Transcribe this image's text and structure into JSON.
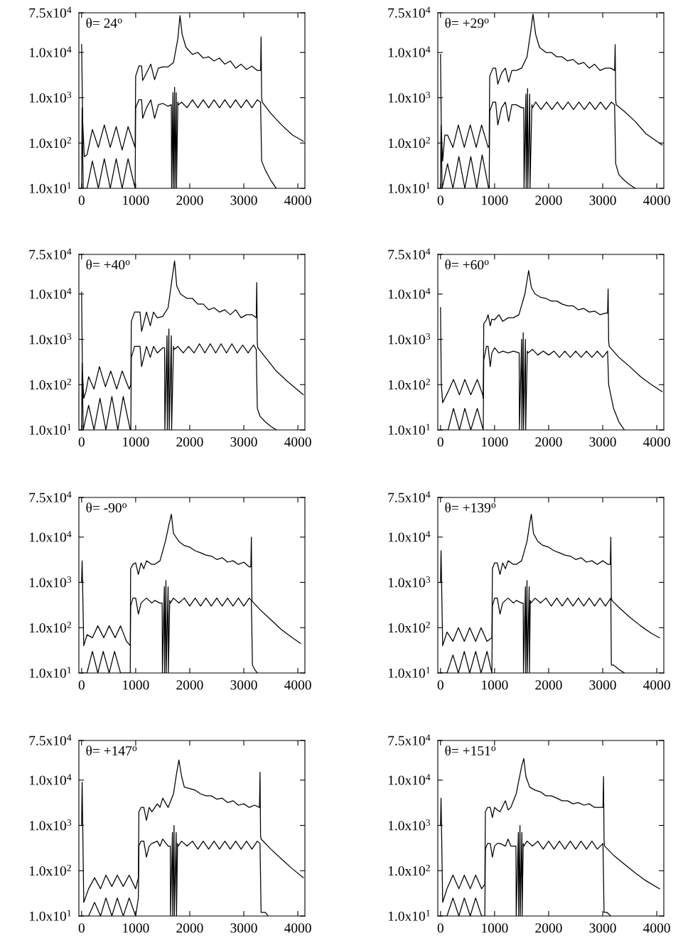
{
  "chart_data": [
    {
      "type": "line",
      "annotations": [
        "θ= 24$^{o}$"
      ],
      "xlim": [
        -50,
        4130
      ],
      "ylim": [
        10,
        75000
      ],
      "xticks": [
        0,
        1000,
        2000,
        3000,
        4000
      ],
      "yticks": [
        {
          "value": 10,
          "label": "1.0x10$^{1}$"
        },
        {
          "value": 100,
          "label": "1.0x10$^{2}$"
        },
        {
          "value": 1000,
          "label": "1.0x10$^{3}$"
        },
        {
          "value": 10000,
          "label": "1.0x10$^{4}$"
        },
        {
          "value": 75000,
          "label": "7.5x10$^{4}$"
        }
      ],
      "log": "y",
      "series": [
        {
          "color": "#000000",
          "x": [
            0,
            20,
            50,
            100,
            200,
            310,
            420,
            530,
            640,
            750,
            860,
            990,
            1000,
            1060,
            1110,
            1130,
            1200,
            1280,
            1350,
            1420,
            1500,
            1600,
            1700,
            1780,
            1820,
            1860,
            1930,
            2050,
            2150,
            2250,
            2350,
            2450,
            2550,
            2650,
            2750,
            2850,
            2950,
            3050,
            3150,
            3250,
            3310,
            3320,
            3330,
            3340,
            3500,
            3700,
            3900,
            4100
          ],
          "values": [
            15000,
            300,
            50,
            55,
            200,
            80,
            250,
            80,
            230,
            70,
            230,
            80,
            3000,
            5000,
            5000,
            2400,
            3500,
            5500,
            2500,
            4500,
            4800,
            4800,
            6000,
            20000,
            65000,
            25000,
            13000,
            9000,
            10000,
            7500,
            8000,
            6500,
            7500,
            5500,
            6500,
            4500,
            5500,
            4200,
            5000,
            4000,
            4000,
            22000,
            1000,
            800,
            450,
            250,
            150,
            110
          ]
        },
        {
          "color": "#000000",
          "x": [
            0,
            10,
            30,
            100,
            200,
            310,
            420,
            530,
            640,
            750,
            860,
            990,
            1000,
            1060,
            1110,
            1130,
            1200,
            1280,
            1350,
            1420,
            1500,
            1600,
            1660,
            1665,
            1690,
            1695,
            1720,
            1725,
            1750,
            1755,
            1780,
            1790,
            1850,
            1950,
            2050,
            2150,
            2250,
            2350,
            2450,
            2550,
            2650,
            2750,
            2850,
            2950,
            3050,
            3150,
            3250,
            3310,
            3330,
            3400,
            3500,
            3600
          ],
          "values": [
            10,
            600,
            10,
            10,
            40,
            10,
            45,
            10,
            45,
            10,
            45,
            10,
            600,
            900,
            900,
            350,
            600,
            900,
            350,
            700,
            750,
            650,
            700,
            10,
            1300,
            10,
            1700,
            10,
            1300,
            10,
            800,
            700,
            800,
            600,
            900,
            600,
            900,
            600,
            900,
            600,
            900,
            600,
            900,
            600,
            900,
            600,
            900,
            800,
            40,
            25,
            15,
            10
          ]
        }
      ]
    },
    {
      "type": "line",
      "annotations": [
        "θ= +29$^{o}$"
      ],
      "xlim": [
        -50,
        4130
      ],
      "ylim": [
        10,
        75000
      ],
      "xticks": [
        0,
        1000,
        2000,
        3000,
        4000
      ],
      "yticks": [
        {
          "value": 10,
          "label": "1.0x10$^{1}$"
        },
        {
          "value": 100,
          "label": "1.0x10$^{2}$"
        },
        {
          "value": 1000,
          "label": "1.0x10$^{3}$"
        },
        {
          "value": 10000,
          "label": "1.0x10$^{4}$"
        },
        {
          "value": 75000,
          "label": "7.5x10$^{4}$"
        }
      ],
      "log": "y",
      "series": [
        {
          "color": "#000000",
          "x": [
            0,
            15,
            40,
            80,
            130,
            230,
            330,
            440,
            550,
            660,
            760,
            880,
            900,
            910,
            970,
            1020,
            1060,
            1130,
            1200,
            1260,
            1320,
            1400,
            1500,
            1600,
            1670,
            1710,
            1760,
            1830,
            1950,
            2050,
            2150,
            2250,
            2350,
            2450,
            2550,
            2650,
            2750,
            2850,
            2950,
            3050,
            3150,
            3220,
            3230,
            3240,
            3250,
            3400,
            3600,
            3800,
            4100
          ],
          "values": [
            9000,
            200,
            40,
            150,
            150,
            80,
            250,
            80,
            250,
            80,
            250,
            80,
            90,
            3000,
            4500,
            4500,
            2000,
            3500,
            4500,
            2200,
            4000,
            4000,
            4500,
            8000,
            30000,
            70000,
            25000,
            13000,
            10000,
            10000,
            8000,
            8000,
            6500,
            7000,
            5500,
            6000,
            4500,
            5500,
            4000,
            4500,
            4500,
            4000,
            15000,
            900,
            700,
            500,
            300,
            160,
            90
          ]
        },
        {
          "color": "#000000",
          "x": [
            0,
            10,
            30,
            130,
            230,
            340,
            450,
            560,
            670,
            770,
            890,
            900,
            910,
            970,
            1020,
            1060,
            1130,
            1200,
            1260,
            1320,
            1400,
            1500,
            1540,
            1545,
            1580,
            1585,
            1610,
            1615,
            1650,
            1655,
            1690,
            1700,
            1760,
            1860,
            1960,
            2060,
            2160,
            2260,
            2360,
            2460,
            2560,
            2660,
            2760,
            2860,
            2960,
            3060,
            3160,
            3220,
            3240,
            3300,
            3400,
            3500,
            3600
          ],
          "values": [
            10,
            250,
            10,
            35,
            10,
            50,
            10,
            50,
            10,
            55,
            10,
            10,
            500,
            800,
            800,
            250,
            600,
            800,
            300,
            700,
            700,
            600,
            600,
            10,
            1200,
            10,
            1600,
            10,
            1200,
            10,
            700,
            600,
            800,
            550,
            800,
            550,
            800,
            550,
            800,
            550,
            800,
            550,
            800,
            550,
            800,
            550,
            800,
            700,
            35,
            20,
            15,
            12,
            10
          ]
        }
      ]
    },
    {
      "type": "line",
      "annotations": [
        "θ= +40$^{o}$"
      ],
      "xlim": [
        -50,
        4130
      ],
      "ylim": [
        10,
        75000
      ],
      "xticks": [
        0,
        1000,
        2000,
        3000,
        4000
      ],
      "yticks": [
        {
          "value": 10,
          "label": "1.0x10$^{1}$"
        },
        {
          "value": 100,
          "label": "1.0x10$^{2}$"
        },
        {
          "value": 1000,
          "label": "1.0x10$^{3}$"
        },
        {
          "value": 10000,
          "label": "1.0x10$^{4}$"
        },
        {
          "value": 75000,
          "label": "7.5x10$^{4}$"
        }
      ],
      "log": "y",
      "series": [
        {
          "color": "#000000",
          "x": [
            0,
            15,
            40,
            80,
            130,
            230,
            330,
            440,
            540,
            650,
            750,
            880,
            910,
            920,
            980,
            1030,
            1080,
            1110,
            1200,
            1270,
            1330,
            1400,
            1500,
            1600,
            1680,
            1720,
            1760,
            1830,
            1950,
            2050,
            2150,
            2250,
            2350,
            2450,
            2550,
            2650,
            2750,
            2850,
            2950,
            3050,
            3150,
            3230,
            3240,
            3250,
            3260,
            3400,
            3600,
            3800,
            4100
          ],
          "values": [
            11000,
            200,
            50,
            70,
            150,
            80,
            250,
            90,
            200,
            80,
            200,
            80,
            100,
            2500,
            4000,
            4000,
            4000,
            1500,
            4000,
            2000,
            4000,
            3000,
            3200,
            5000,
            25000,
            54000,
            15000,
            10000,
            8000,
            8000,
            6000,
            6000,
            4500,
            5000,
            4000,
            4500,
            3500,
            4500,
            3000,
            3500,
            3500,
            3000,
            18000,
            800,
            650,
            400,
            200,
            120,
            60
          ]
        },
        {
          "color": "#000000",
          "x": [
            0,
            10,
            30,
            130,
            230,
            340,
            450,
            560,
            670,
            770,
            900,
            910,
            920,
            980,
            1030,
            1080,
            1110,
            1200,
            1270,
            1330,
            1400,
            1500,
            1535,
            1540,
            1580,
            1585,
            1615,
            1620,
            1660,
            1665,
            1700,
            1710,
            1780,
            1880,
            1980,
            2080,
            2180,
            2280,
            2380,
            2480,
            2580,
            2680,
            2780,
            2880,
            2980,
            3080,
            3180,
            3230,
            3250,
            3300,
            3400,
            3500,
            3600
          ],
          "values": [
            10,
            300,
            10,
            35,
            10,
            50,
            10,
            55,
            10,
            55,
            10,
            10,
            400,
            700,
            700,
            700,
            250,
            700,
            400,
            700,
            500,
            650,
            650,
            10,
            1200,
            10,
            1700,
            10,
            1200,
            10,
            700,
            600,
            700,
            500,
            700,
            500,
            800,
            500,
            800,
            500,
            800,
            500,
            800,
            500,
            750,
            500,
            750,
            600,
            30,
            20,
            15,
            12,
            10
          ]
        }
      ]
    },
    {
      "type": "line",
      "annotations": [
        "θ= +60$^{o}$"
      ],
      "xlim": [
        -50,
        4130
      ],
      "ylim": [
        10,
        75000
      ],
      "xticks": [
        0,
        1000,
        2000,
        3000,
        4000
      ],
      "yticks": [
        {
          "value": 10,
          "label": "1.0x10$^{1}$"
        },
        {
          "value": 100,
          "label": "1.0x10$^{2}$"
        },
        {
          "value": 1000,
          "label": "1.0x10$^{3}$"
        },
        {
          "value": 10000,
          "label": "1.0x10$^{4}$"
        },
        {
          "value": 75000,
          "label": "7.5x10$^{4}$"
        }
      ],
      "log": "y",
      "series": [
        {
          "color": "#000000",
          "x": [
            0,
            15,
            40,
            80,
            140,
            240,
            350,
            450,
            560,
            680,
            780,
            790,
            800,
            850,
            880,
            920,
            950,
            1000,
            1080,
            1150,
            1250,
            1350,
            1450,
            1560,
            1630,
            1680,
            1750,
            1850,
            1950,
            2050,
            2150,
            2250,
            2350,
            2450,
            2550,
            2650,
            2750,
            2850,
            2950,
            3050,
            3090,
            3100,
            3110,
            3120,
            3300,
            3500,
            3700,
            3900,
            4100
          ],
          "values": [
            5000,
            100,
            40,
            50,
            70,
            130,
            60,
            130,
            60,
            130,
            60,
            50,
            2200,
            2700,
            3500,
            2000,
            2800,
            2700,
            3500,
            2500,
            3000,
            3000,
            3500,
            10000,
            33000,
            14000,
            10000,
            8500,
            8000,
            7000,
            7000,
            6000,
            5500,
            5500,
            4500,
            4800,
            4000,
            4200,
            3500,
            3800,
            3800,
            13000,
            900,
            700,
            400,
            250,
            150,
            100,
            70
          ]
        },
        {
          "color": "#000000",
          "x": [
            0,
            20,
            140,
            240,
            350,
            450,
            560,
            680,
            790,
            800,
            850,
            880,
            920,
            950,
            1000,
            1080,
            1150,
            1250,
            1350,
            1455,
            1460,
            1500,
            1505,
            1530,
            1535,
            1570,
            1575,
            1605,
            1615,
            1700,
            1800,
            1900,
            2000,
            2100,
            2200,
            2300,
            2400,
            2500,
            2600,
            2700,
            2800,
            2900,
            3000,
            3090,
            3110,
            3200,
            3300,
            3400
          ],
          "values": [
            10,
            10,
            10,
            30,
            10,
            30,
            10,
            30,
            10,
            350,
            700,
            700,
            250,
            500,
            650,
            500,
            550,
            500,
            550,
            500,
            10,
            1000,
            10,
            1400,
            10,
            1000,
            10,
            550,
            500,
            600,
            450,
            550,
            450,
            550,
            400,
            550,
            400,
            550,
            400,
            550,
            400,
            550,
            400,
            550,
            100,
            30,
            15,
            10
          ]
        }
      ]
    },
    {
      "type": "line",
      "annotations": [
        "θ= -90$^{o}$"
      ],
      "xlim": [
        -50,
        4130
      ],
      "ylim": [
        10,
        75000
      ],
      "xticks": [
        0,
        1000,
        2000,
        3000,
        4000
      ],
      "yticks": [
        {
          "value": 10,
          "label": "1.0x10$^{1}$"
        },
        {
          "value": 100,
          "label": "1.0x10$^{2}$"
        },
        {
          "value": 1000,
          "label": "1.0x10$^{3}$"
        },
        {
          "value": 10000,
          "label": "1.0x10$^{4}$"
        },
        {
          "value": 75000,
          "label": "7.5x10$^{4}$"
        }
      ],
      "log": "y",
      "series": [
        {
          "color": "#000000",
          "x": [
            0,
            10,
            40,
            100,
            200,
            300,
            410,
            510,
            620,
            720,
            830,
            900,
            907,
            950,
            1000,
            1050,
            1100,
            1150,
            1200,
            1300,
            1350,
            1450,
            1550,
            1620,
            1660,
            1700,
            1800,
            1900,
            2000,
            2100,
            2200,
            2300,
            2400,
            2500,
            2600,
            2700,
            2800,
            2900,
            3000,
            3100,
            3130,
            3140,
            3150,
            3160,
            3300,
            3500,
            3700,
            3900,
            4050
          ],
          "values": [
            1000,
            3000,
            40,
            70,
            60,
            110,
            60,
            110,
            60,
            110,
            50,
            40,
            2000,
            2500,
            2700,
            1500,
            2700,
            2000,
            3000,
            2500,
            2500,
            3000,
            8000,
            20000,
            32000,
            12000,
            8000,
            6500,
            6000,
            5000,
            4500,
            4000,
            3800,
            3200,
            3500,
            2800,
            3000,
            2500,
            2800,
            2200,
            2200,
            10000,
            400,
            380,
            250,
            150,
            90,
            60,
            45
          ]
        },
        {
          "color": "#000000",
          "x": [
            0,
            20,
            100,
            200,
            300,
            400,
            510,
            610,
            720,
            820,
            900,
            907,
            950,
            1000,
            1050,
            1100,
            1150,
            1200,
            1300,
            1350,
            1450,
            1490,
            1495,
            1530,
            1535,
            1560,
            1565,
            1600,
            1605,
            1630,
            1640,
            1700,
            1800,
            1900,
            2000,
            2100,
            2200,
            2300,
            2400,
            2500,
            2600,
            2700,
            2800,
            2900,
            3000,
            3100,
            3140,
            3160,
            3200,
            3250
          ],
          "values": [
            10,
            10,
            10,
            30,
            10,
            30,
            10,
            30,
            10,
            10,
            10,
            300,
            450,
            450,
            200,
            350,
            400,
            450,
            350,
            400,
            350,
            350,
            10,
            800,
            10,
            1100,
            10,
            800,
            10,
            400,
            350,
            450,
            350,
            450,
            300,
            450,
            300,
            450,
            300,
            450,
            300,
            450,
            300,
            450,
            300,
            450,
            400,
            15,
            12,
            10
          ]
        }
      ]
    },
    {
      "type": "line",
      "annotations": [
        "θ= +139$^{o}$"
      ],
      "xlim": [
        -50,
        4130
      ],
      "ylim": [
        10,
        75000
      ],
      "xticks": [
        0,
        1000,
        2000,
        3000,
        4000
      ],
      "yticks": [
        {
          "value": 10,
          "label": "1.0x10$^{1}$"
        },
        {
          "value": 100,
          "label": "1.0x10$^{2}$"
        },
        {
          "value": 1000,
          "label": "1.0x10$^{3}$"
        },
        {
          "value": 10000,
          "label": "1.0x10$^{4}$"
        },
        {
          "value": 75000,
          "label": "7.5x10$^{4}$"
        }
      ],
      "log": "y",
      "series": [
        {
          "color": "#000000",
          "x": [
            0,
            10,
            40,
            120,
            230,
            330,
            440,
            540,
            650,
            750,
            860,
            950,
            960,
            1000,
            1050,
            1100,
            1150,
            1200,
            1250,
            1350,
            1400,
            1500,
            1600,
            1650,
            1680,
            1720,
            1800,
            1900,
            2000,
            2100,
            2200,
            2300,
            2400,
            2500,
            2600,
            2700,
            2800,
            2900,
            3000,
            3100,
            3140,
            3150,
            3160,
            3170,
            3300,
            3500,
            3700,
            3900,
            4050
          ],
          "values": [
            1000,
            5000,
            40,
            80,
            50,
            100,
            50,
            100,
            50,
            100,
            50,
            60,
            2000,
            2700,
            2700,
            1500,
            2700,
            2000,
            3000,
            2500,
            2500,
            3000,
            8000,
            20000,
            32000,
            12000,
            8000,
            6500,
            6000,
            5000,
            4500,
            4000,
            3800,
            3200,
            3500,
            2800,
            3000,
            2500,
            3000,
            2500,
            2500,
            10000,
            450,
            400,
            280,
            170,
            110,
            75,
            60
          ]
        },
        {
          "color": "#000000",
          "x": [
            0,
            20,
            120,
            230,
            330,
            440,
            540,
            650,
            750,
            860,
            950,
            960,
            1000,
            1050,
            1100,
            1150,
            1200,
            1250,
            1350,
            1400,
            1500,
            1530,
            1535,
            1570,
            1575,
            1600,
            1605,
            1640,
            1645,
            1660,
            1670,
            1750,
            1850,
            1950,
            2050,
            2150,
            2250,
            2350,
            2450,
            2550,
            2650,
            2750,
            2850,
            2950,
            3050,
            3150,
            3160,
            3200,
            3300,
            3400
          ],
          "values": [
            10,
            10,
            10,
            25,
            10,
            30,
            10,
            30,
            10,
            30,
            10,
            300,
            450,
            450,
            200,
            350,
            400,
            450,
            350,
            400,
            350,
            350,
            10,
            800,
            10,
            1100,
            10,
            800,
            10,
            400,
            350,
            450,
            350,
            450,
            300,
            450,
            300,
            450,
            300,
            450,
            300,
            450,
            300,
            450,
            300,
            450,
            15,
            15,
            12,
            10
          ]
        }
      ]
    },
    {
      "type": "line",
      "annotations": [
        "θ= +147$^{o}$"
      ],
      "xlim": [
        -50,
        4130
      ],
      "ylim": [
        10,
        75000
      ],
      "xticks": [
        0,
        1000,
        2000,
        3000,
        4000
      ],
      "yticks": [
        {
          "value": 10,
          "label": "1.0x10$^{1}$"
        },
        {
          "value": 100,
          "label": "1.0x10$^{2}$"
        },
        {
          "value": 1000,
          "label": "1.0x10$^{3}$"
        },
        {
          "value": 10000,
          "label": "1.0x10$^{4}$"
        },
        {
          "value": 75000,
          "label": "7.5x10$^{4}$"
        }
      ],
      "log": "y",
      "series": [
        {
          "color": "#000000",
          "x": [
            0,
            10,
            40,
            130,
            240,
            350,
            450,
            560,
            660,
            770,
            880,
            1000,
            1050,
            1060,
            1100,
            1150,
            1200,
            1250,
            1300,
            1400,
            1450,
            1500,
            1600,
            1700,
            1760,
            1800,
            1850,
            1900,
            2000,
            2100,
            2200,
            2300,
            2400,
            2500,
            2600,
            2700,
            2800,
            2900,
            3000,
            3100,
            3200,
            3290,
            3300,
            3310,
            3320,
            3500,
            3700,
            3900,
            4100
          ],
          "values": [
            1000,
            9000,
            20,
            40,
            70,
            40,
            80,
            45,
            80,
            45,
            80,
            40,
            70,
            2000,
            2500,
            2500,
            1300,
            2500,
            2000,
            3000,
            2500,
            4000,
            2500,
            5000,
            15000,
            28000,
            12000,
            7000,
            6500,
            6000,
            5000,
            4500,
            4500,
            3800,
            4000,
            3200,
            3500,
            2800,
            3000,
            2500,
            2800,
            2500,
            15000,
            600,
            500,
            300,
            180,
            110,
            70
          ]
        },
        {
          "color": "#000000",
          "x": [
            0,
            20,
            130,
            240,
            350,
            450,
            560,
            660,
            770,
            880,
            1000,
            1050,
            1060,
            1100,
            1150,
            1200,
            1250,
            1300,
            1400,
            1450,
            1500,
            1600,
            1640,
            1645,
            1680,
            1685,
            1710,
            1715,
            1750,
            1755,
            1775,
            1785,
            1850,
            1950,
            2050,
            2150,
            2250,
            2350,
            2450,
            2550,
            2650,
            2750,
            2850,
            2950,
            3050,
            3150,
            3250,
            3300,
            3320,
            3400,
            3450
          ],
          "values": [
            10,
            10,
            10,
            20,
            10,
            25,
            10,
            25,
            10,
            25,
            10,
            25,
            350,
            450,
            450,
            200,
            350,
            400,
            450,
            350,
            500,
            350,
            350,
            10,
            700,
            10,
            1000,
            10,
            700,
            10,
            400,
            350,
            450,
            350,
            450,
            300,
            450,
            300,
            450,
            300,
            450,
            300,
            450,
            300,
            450,
            300,
            450,
            400,
            12,
            12,
            10
          ]
        }
      ]
    },
    {
      "type": "line",
      "annotations": [
        "θ= +151$^{o}$"
      ],
      "xlim": [
        -50,
        4130
      ],
      "ylim": [
        10,
        75000
      ],
      "xticks": [
        0,
        1000,
        2000,
        3000,
        4000
      ],
      "yticks": [
        {
          "value": 10,
          "label": "1.0x10$^{1}$"
        },
        {
          "value": 100,
          "label": "1.0x10$^{2}$"
        },
        {
          "value": 1000,
          "label": "1.0x10$^{3}$"
        },
        {
          "value": 10000,
          "label": "1.0x10$^{4}$"
        },
        {
          "value": 75000,
          "label": "7.5x10$^{4}$"
        }
      ],
      "log": "y",
      "series": [
        {
          "color": "#000000",
          "x": [
            0,
            10,
            40,
            120,
            230,
            340,
            440,
            550,
            650,
            760,
            820,
            830,
            870,
            920,
            960,
            1000,
            1050,
            1100,
            1200,
            1250,
            1300,
            1400,
            1500,
            1540,
            1580,
            1650,
            1750,
            1850,
            1950,
            2050,
            2150,
            2250,
            2350,
            2450,
            2550,
            2650,
            2750,
            2850,
            2950,
            3005,
            3015,
            3025,
            3035,
            3200,
            3400,
            3600,
            3800,
            4050
          ],
          "values": [
            1000,
            4000,
            20,
            40,
            80,
            40,
            80,
            40,
            80,
            40,
            50,
            2000,
            2500,
            2500,
            1500,
            2500,
            2200,
            2000,
            3500,
            2200,
            2500,
            5000,
            20000,
            30000,
            12000,
            7000,
            6000,
            5500,
            4500,
            4500,
            4000,
            3500,
            3500,
            3000,
            3200,
            2800,
            3000,
            2500,
            2500,
            2500,
            12000,
            450,
            350,
            220,
            140,
            90,
            60,
            40
          ]
        },
        {
          "color": "#000000",
          "x": [
            0,
            20,
            120,
            230,
            340,
            440,
            550,
            650,
            760,
            820,
            830,
            870,
            920,
            960,
            1000,
            1050,
            1100,
            1200,
            1250,
            1300,
            1395,
            1400,
            1440,
            1445,
            1470,
            1475,
            1505,
            1510,
            1530,
            1540,
            1600,
            1700,
            1800,
            1900,
            2000,
            2100,
            2200,
            2300,
            2400,
            2500,
            2600,
            2700,
            2800,
            2900,
            3005,
            3025,
            3080,
            3150
          ],
          "values": [
            10,
            10,
            10,
            25,
            10,
            25,
            10,
            25,
            10,
            10,
            300,
            400,
            400,
            200,
            350,
            400,
            400,
            350,
            500,
            350,
            350,
            10,
            700,
            10,
            1000,
            10,
            700,
            10,
            400,
            350,
            450,
            350,
            450,
            300,
            450,
            300,
            450,
            300,
            450,
            300,
            450,
            300,
            450,
            300,
            400,
            12,
            12,
            10
          ]
        }
      ]
    }
  ]
}
